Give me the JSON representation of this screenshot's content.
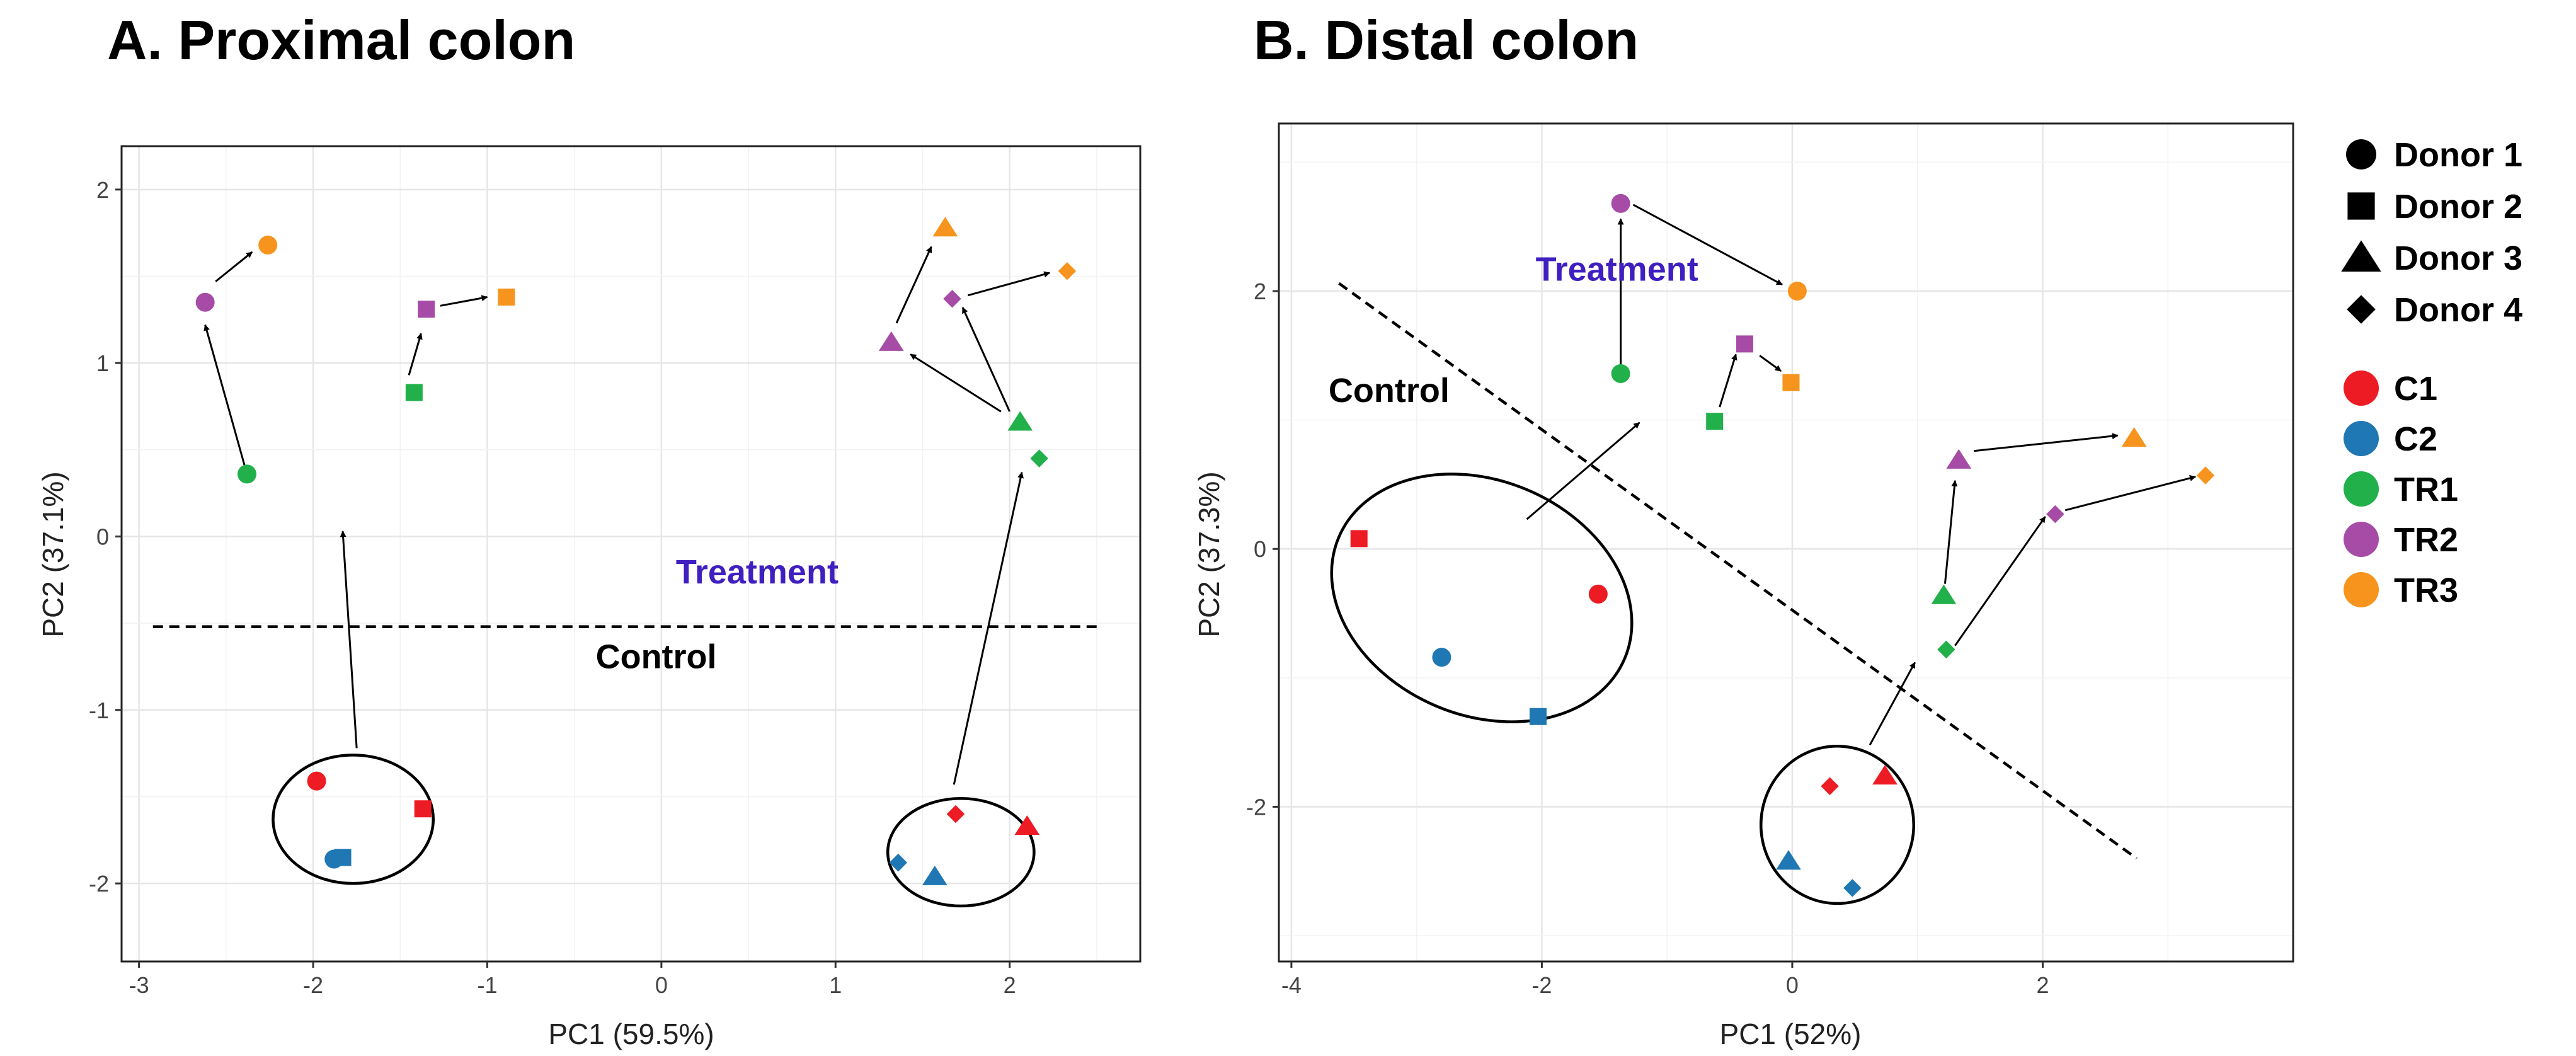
{
  "colors": {
    "C1": "#ed1c24",
    "C2": "#1f77b4",
    "TR1": "#22b04b",
    "TR2": "#a64ca6",
    "TR3": "#f7941d",
    "treatment_text": "#3f1fbf"
  },
  "legend": {
    "shapes": [
      {
        "label": "Donor 1",
        "shape": "circle"
      },
      {
        "label": "Donor 2",
        "shape": "square"
      },
      {
        "label": "Donor 3",
        "shape": "triangle"
      },
      {
        "label": "Donor 4",
        "shape": "diamond"
      }
    ],
    "groups": [
      {
        "label": "C1",
        "key": "C1"
      },
      {
        "label": "C2",
        "key": "C2"
      },
      {
        "label": "TR1",
        "key": "TR1"
      },
      {
        "label": "TR2",
        "key": "TR2"
      },
      {
        "label": "TR3",
        "key": "TR3"
      }
    ]
  },
  "chart_data": [
    {
      "type": "scatter",
      "title": "A. Proximal colon",
      "xlabel": "PC1 (59.5%)",
      "ylabel": "PC2 (37.1%)",
      "xlim": [
        -3.1,
        2.75
      ],
      "ylim": [
        -2.45,
        2.25
      ],
      "xticks": [
        -3,
        -2,
        -1,
        0,
        1,
        2
      ],
      "yticks": [
        -2,
        -1,
        0,
        1,
        2
      ],
      "xtick_labels": [
        "-3",
        "-2",
        "-1",
        "0",
        "1",
        "2"
      ],
      "ytick_labels": [
        "-2",
        "-1",
        "0",
        "1",
        "2"
      ],
      "grid": true,
      "annotations": [
        {
          "text": "Treatment",
          "x": 0.55,
          "y": -0.27,
          "color": "#3f1fbf"
        },
        {
          "text": "Control",
          "x": -0.03,
          "y": -0.76,
          "color": "#000000"
        }
      ],
      "separator": {
        "style": "dashed",
        "from": [
          -2.92,
          -0.52
        ],
        "to": [
          2.5,
          -0.52
        ]
      },
      "ellipses": [
        {
          "cx": -1.77,
          "cy": -1.63,
          "rx": 0.46,
          "ry": 0.37
        },
        {
          "cx": 1.72,
          "cy": -1.82,
          "rx": 0.42,
          "ry": 0.31
        }
      ],
      "arrows": [
        {
          "from": [
            -2.38,
            0.36
          ],
          "to": [
            -2.62,
            1.22
          ]
        },
        {
          "from": [
            -2.56,
            1.47
          ],
          "to": [
            -2.35,
            1.64
          ]
        },
        {
          "from": [
            -1.45,
            0.93
          ],
          "to": [
            -1.38,
            1.17
          ]
        },
        {
          "from": [
            -1.27,
            1.33
          ],
          "to": [
            -1.0,
            1.38
          ]
        },
        {
          "from": [
            1.35,
            1.23
          ],
          "to": [
            1.55,
            1.67
          ]
        },
        {
          "from": [
            1.76,
            1.39
          ],
          "to": [
            2.23,
            1.52
          ]
        },
        {
          "from": [
            1.95,
            0.72
          ],
          "to": [
            1.43,
            1.05
          ]
        },
        {
          "from": [
            2.0,
            0.72
          ],
          "to": [
            1.73,
            1.32
          ]
        },
        {
          "from": [
            -1.75,
            -1.22
          ],
          "to": [
            -1.83,
            0.03
          ]
        },
        {
          "from": [
            1.68,
            -1.43
          ],
          "to": [
            2.07,
            0.37
          ]
        }
      ],
      "points": [
        {
          "x": -2.38,
          "y": 0.36,
          "group": "TR1",
          "donor": "circle"
        },
        {
          "x": -2.62,
          "y": 1.35,
          "group": "TR2",
          "donor": "circle"
        },
        {
          "x": -2.26,
          "y": 1.68,
          "group": "TR3",
          "donor": "circle"
        },
        {
          "x": -1.42,
          "y": 0.83,
          "group": "TR1",
          "donor": "square"
        },
        {
          "x": -1.35,
          "y": 1.31,
          "group": "TR2",
          "donor": "square"
        },
        {
          "x": -0.89,
          "y": 1.38,
          "group": "TR3",
          "donor": "square"
        },
        {
          "x": 1.32,
          "y": 1.12,
          "group": "TR2",
          "donor": "triangle"
        },
        {
          "x": 1.63,
          "y": 1.78,
          "group": "TR3",
          "donor": "triangle"
        },
        {
          "x": 1.67,
          "y": 1.37,
          "group": "TR2",
          "donor": "diamond"
        },
        {
          "x": 2.33,
          "y": 1.53,
          "group": "TR3",
          "donor": "diamond"
        },
        {
          "x": 2.06,
          "y": 0.66,
          "group": "TR1",
          "donor": "triangle"
        },
        {
          "x": 2.17,
          "y": 0.45,
          "group": "TR1",
          "donor": "diamond"
        },
        {
          "x": -1.98,
          "y": -1.41,
          "group": "C1",
          "donor": "circle"
        },
        {
          "x": -1.37,
          "y": -1.57,
          "group": "C1",
          "donor": "square"
        },
        {
          "x": -1.88,
          "y": -1.86,
          "group": "C2",
          "donor": "circle"
        },
        {
          "x": -1.83,
          "y": -1.85,
          "group": "C2",
          "donor": "square"
        },
        {
          "x": 1.69,
          "y": -1.6,
          "group": "C1",
          "donor": "diamond"
        },
        {
          "x": 2.1,
          "y": -1.67,
          "group": "C1",
          "donor": "triangle"
        },
        {
          "x": 1.36,
          "y": -1.88,
          "group": "C2",
          "donor": "diamond"
        },
        {
          "x": 1.57,
          "y": -1.96,
          "group": "C2",
          "donor": "triangle"
        }
      ]
    },
    {
      "type": "scatter",
      "title": "B. Distal colon",
      "xlabel": "PC1 (52%)",
      "ylabel": "PC2 (37.3%)",
      "xlim": [
        -4.1,
        4.0
      ],
      "ylim": [
        -3.2,
        3.3
      ],
      "xticks": [
        -4,
        -2,
        0,
        2
      ],
      "yticks": [
        -2,
        0,
        2
      ],
      "xtick_labels": [
        "-4",
        "-2",
        "0",
        "2"
      ],
      "ytick_labels": [
        "-2",
        "0",
        "2"
      ],
      "grid": true,
      "annotations": [
        {
          "text": "Treatment",
          "x": -1.4,
          "y": 2.08,
          "color": "#3f1fbf"
        },
        {
          "text": "Control",
          "x": -3.22,
          "y": 1.14,
          "color": "#000000"
        }
      ],
      "separator": {
        "style": "dashed",
        "from": [
          -3.62,
          2.06
        ],
        "to": [
          2.75,
          -2.4
        ]
      },
      "ellipses": [
        {
          "cx": -2.48,
          "cy": -0.38,
          "rx": 1.24,
          "ry": 0.91,
          "rotation_deg": 23
        },
        {
          "cx": 0.36,
          "cy": -2.14,
          "rx": 0.61,
          "ry": 0.61
        }
      ],
      "arrows": [
        {
          "from": [
            -1.37,
            1.36
          ],
          "to": [
            -1.37,
            2.56
          ]
        },
        {
          "from": [
            -1.27,
            2.67
          ],
          "to": [
            -0.08,
            2.05
          ]
        },
        {
          "from": [
            -0.58,
            1.1
          ],
          "to": [
            -0.45,
            1.51
          ]
        },
        {
          "from": [
            -0.26,
            1.5
          ],
          "to": [
            -0.09,
            1.38
          ]
        },
        {
          "from": [
            1.22,
            -0.27
          ],
          "to": [
            1.3,
            0.53
          ]
        },
        {
          "from": [
            1.45,
            0.76
          ],
          "to": [
            2.6,
            0.88
          ]
        },
        {
          "from": [
            1.3,
            -0.75
          ],
          "to": [
            2.02,
            0.25
          ]
        },
        {
          "from": [
            2.18,
            0.3
          ],
          "to": [
            3.22,
            0.56
          ]
        },
        {
          "from": [
            -2.12,
            0.23
          ],
          "to": [
            -1.22,
            0.98
          ]
        },
        {
          "from": [
            0.62,
            -1.52
          ],
          "to": [
            0.98,
            -0.88
          ]
        }
      ],
      "points": [
        {
          "x": -1.37,
          "y": 1.36,
          "group": "TR1",
          "donor": "circle"
        },
        {
          "x": -1.37,
          "y": 2.68,
          "group": "TR2",
          "donor": "circle"
        },
        {
          "x": 0.04,
          "y": 2.0,
          "group": "TR3",
          "donor": "circle"
        },
        {
          "x": -0.62,
          "y": 0.99,
          "group": "TR1",
          "donor": "square"
        },
        {
          "x": -0.38,
          "y": 1.59,
          "group": "TR2",
          "donor": "square"
        },
        {
          "x": -0.01,
          "y": 1.29,
          "group": "TR3",
          "donor": "square"
        },
        {
          "x": 1.21,
          "y": -0.36,
          "group": "TR1",
          "donor": "triangle"
        },
        {
          "x": 1.33,
          "y": 0.69,
          "group": "TR2",
          "donor": "triangle"
        },
        {
          "x": 2.73,
          "y": 0.86,
          "group": "TR3",
          "donor": "triangle"
        },
        {
          "x": 1.23,
          "y": -0.78,
          "group": "TR1",
          "donor": "diamond"
        },
        {
          "x": 2.1,
          "y": 0.27,
          "group": "TR2",
          "donor": "diamond"
        },
        {
          "x": 3.3,
          "y": 0.57,
          "group": "TR3",
          "donor": "diamond"
        },
        {
          "x": -1.55,
          "y": -0.35,
          "group": "C1",
          "donor": "circle"
        },
        {
          "x": -3.46,
          "y": 0.08,
          "group": "C1",
          "donor": "square"
        },
        {
          "x": -2.8,
          "y": -0.84,
          "group": "C2",
          "donor": "circle"
        },
        {
          "x": -2.03,
          "y": -1.3,
          "group": "C2",
          "donor": "square"
        },
        {
          "x": 0.74,
          "y": -1.76,
          "group": "C1",
          "donor": "triangle"
        },
        {
          "x": 0.3,
          "y": -1.84,
          "group": "C1",
          "donor": "diamond"
        },
        {
          "x": -0.03,
          "y": -2.42,
          "group": "C2",
          "donor": "triangle"
        },
        {
          "x": 0.48,
          "y": -2.63,
          "group": "C2",
          "donor": "diamond"
        }
      ]
    }
  ]
}
